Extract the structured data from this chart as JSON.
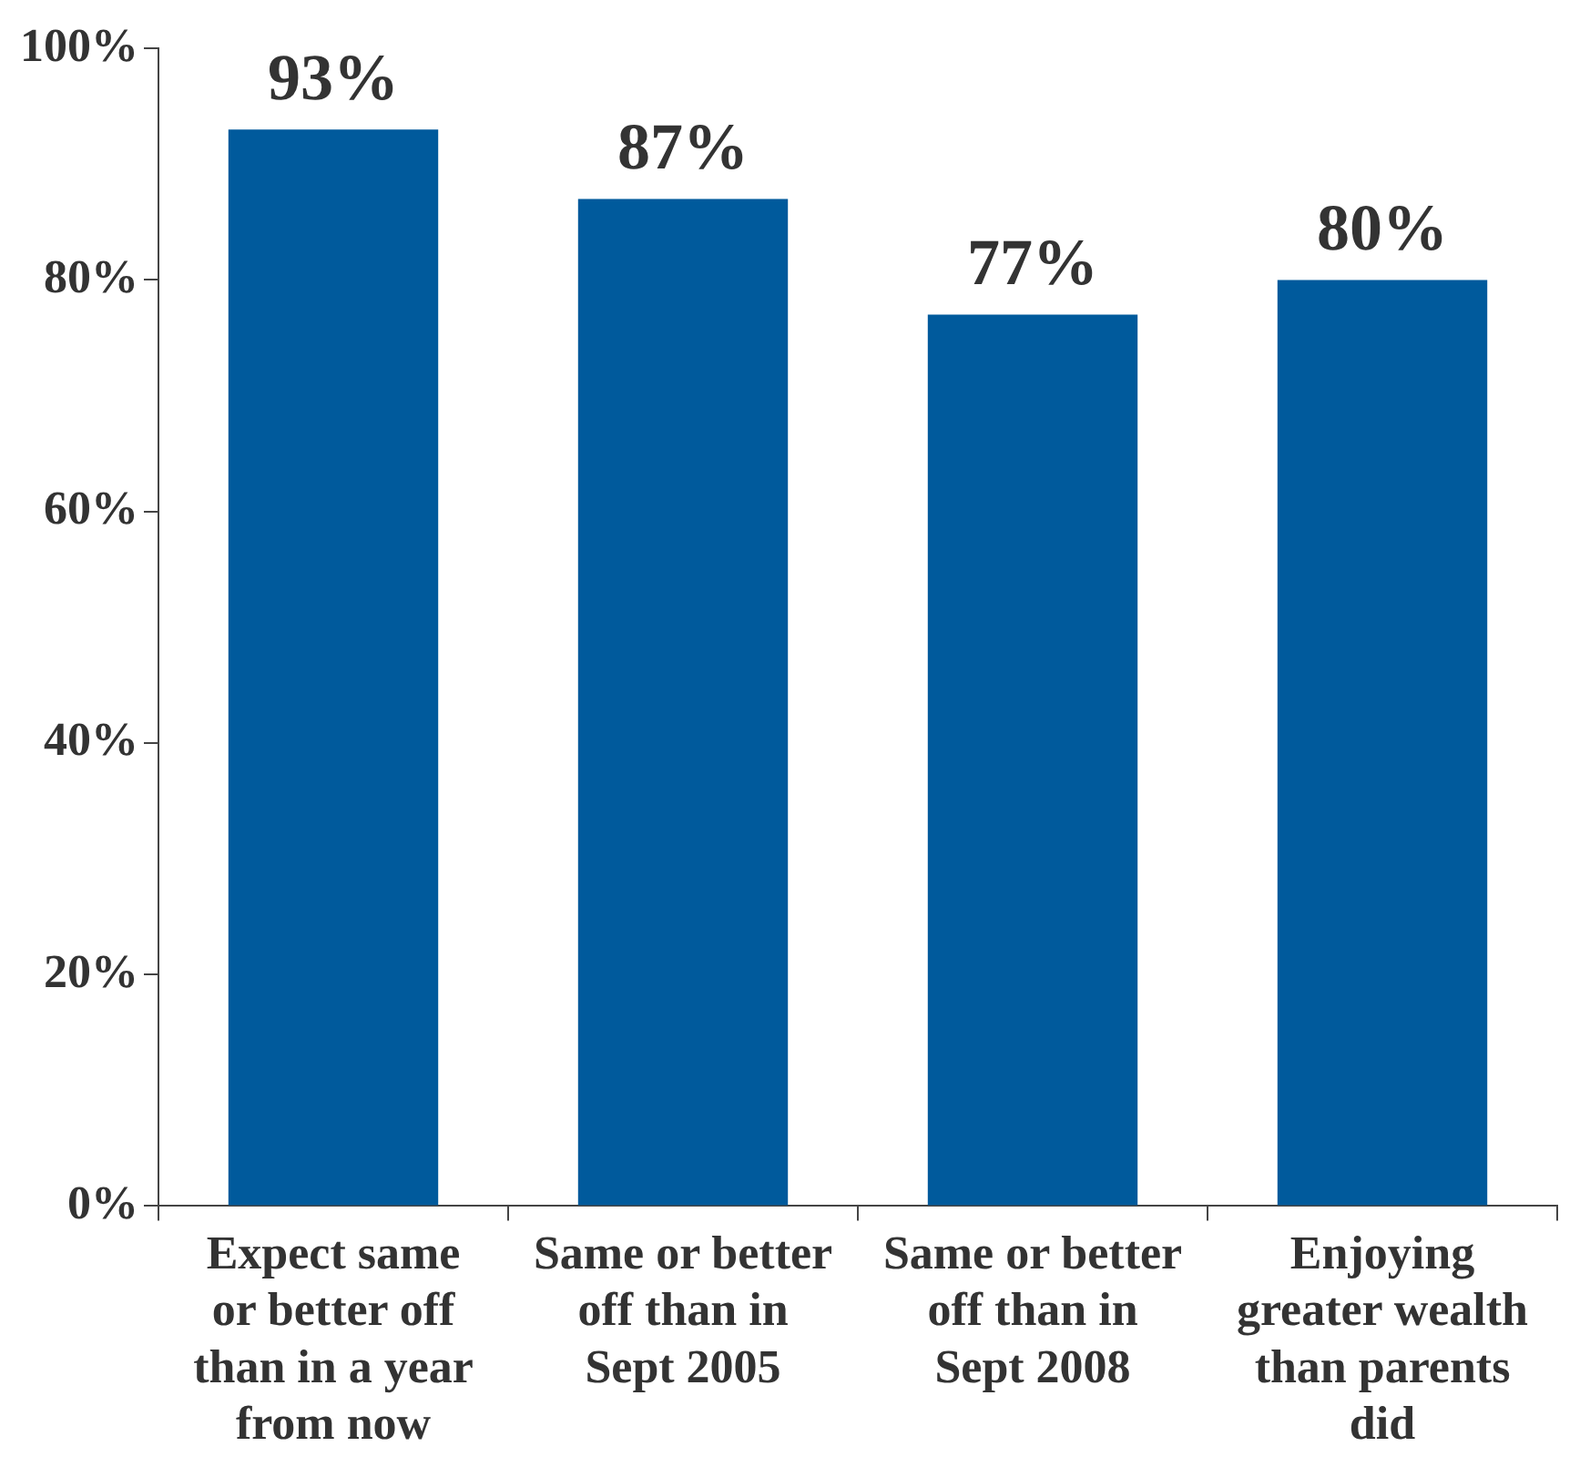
{
  "chart_data": {
    "type": "bar",
    "categories": [
      "Expect same or better off than in a year from now",
      "Same or better off than in Sept 2005",
      "Same or better off than in Sept 2008",
      "Enjoying greater wealth than parents did"
    ],
    "values": [
      93,
      87,
      77,
      80
    ],
    "color": "#005a9c",
    "value_labels": [
      "93%",
      "87%",
      "77%",
      "80%"
    ],
    "ylim": [
      0,
      100
    ],
    "yticks": [
      {
        "value": 0,
        "label": "0%"
      },
      {
        "value": 20,
        "label": "20%"
      },
      {
        "value": 40,
        "label": "40%"
      },
      {
        "value": 60,
        "label": "60%"
      },
      {
        "value": 80,
        "label": "80%"
      },
      {
        "value": 100,
        "label": "100%"
      }
    ],
    "grid": false,
    "legend": false
  }
}
